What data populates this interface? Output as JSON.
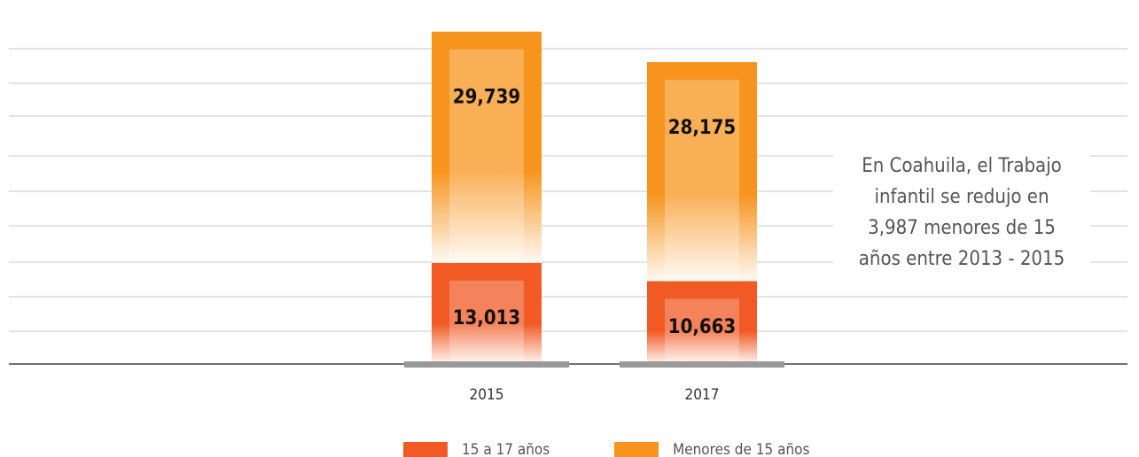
{
  "chart_data": {
    "type": "stacked_bar",
    "categories": [
      "2015",
      "2017"
    ],
    "series": [
      {
        "name": "15 a 17 años",
        "color": "#f15a24",
        "values": [
          13013,
          10663
        ],
        "value_labels": [
          "13,013",
          "10,663"
        ]
      },
      {
        "name": "Menores de 15 años",
        "color": "#f7941d",
        "values": [
          29739,
          28175
        ],
        "value_labels": [
          "29,739",
          "28,175"
        ]
      }
    ],
    "ylim": [
      0,
      45000
    ],
    "annotation": [
      "En Coahuila, el Trabajo",
      "infantil se redujo en",
      "3,987 menores de 15",
      "años entre 2013 - 2015"
    ]
  }
}
